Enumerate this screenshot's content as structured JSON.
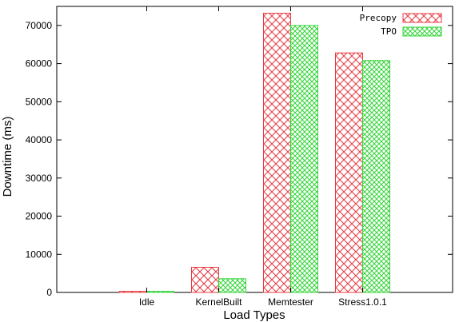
{
  "chart_data": {
    "type": "bar",
    "categories": [
      "Idle",
      "KernelBuilt",
      "Memtester",
      "Stress1.0.1"
    ],
    "series": [
      {
        "name": "Precopy",
        "values": [
          300,
          6600,
          73200,
          62800
        ],
        "color": "#e8373f",
        "pattern": "crosshatch"
      },
      {
        "name": "TPO",
        "values": [
          300,
          3600,
          70000,
          60800
        ],
        "color": "#35d43a",
        "pattern": "crosshatch"
      }
    ],
    "title": "",
    "xlabel": "Load Types",
    "ylabel": "Downtime (ms)",
    "ylim": [
      0,
      75000
    ],
    "yticks": [
      0,
      10000,
      20000,
      30000,
      40000,
      50000,
      60000,
      70000
    ],
    "legend_position": "top-right",
    "grid": false
  }
}
